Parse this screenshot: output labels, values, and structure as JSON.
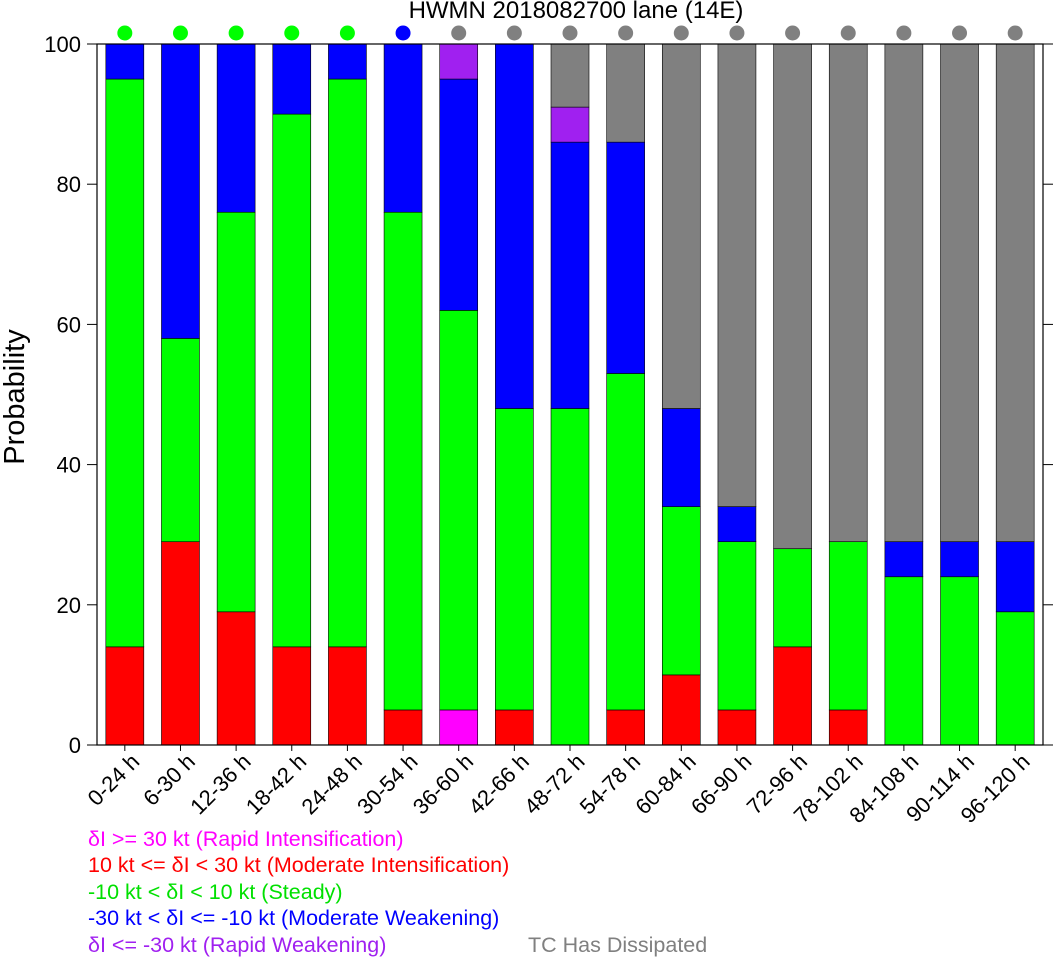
{
  "chart_data": {
    "type": "bar",
    "stacked": true,
    "title": "HWMN 2018082700 lane (14E)",
    "ylabel": "Probability",
    "xlabel": "",
    "ylim": [
      0,
      100
    ],
    "yticks": [
      0,
      20,
      40,
      60,
      80,
      100
    ],
    "categories": [
      "0-24 h",
      "6-30 h",
      "12-36 h",
      "18-42 h",
      "24-48 h",
      "30-54 h",
      "36-60 h",
      "42-66 h",
      "48-72 h",
      "54-78 h",
      "60-84 h",
      "66-90 h",
      "72-96 h",
      "78-102 h",
      "84-108 h",
      "90-114 h",
      "96-120 h"
    ],
    "series": [
      {
        "name": "δI >= 30 kt (Rapid Intensification)",
        "color": "#ff00ff",
        "values": [
          0,
          0,
          0,
          0,
          0,
          0,
          5,
          0,
          0,
          0,
          0,
          0,
          0,
          0,
          0,
          0,
          0
        ]
      },
      {
        "name": "10 kt <= δI < 30 kt (Moderate Intensification)",
        "color": "#ff0000",
        "values": [
          14,
          29,
          19,
          14,
          14,
          5,
          0,
          5,
          0,
          5,
          10,
          5,
          14,
          5,
          0,
          0,
          0
        ]
      },
      {
        "name": "-10 kt < δI < 10 kt (Steady)",
        "color": "#00ff00",
        "values": [
          81,
          29,
          57,
          76,
          81,
          71,
          57,
          43,
          48,
          48,
          24,
          24,
          14,
          24,
          24,
          24,
          19
        ]
      },
      {
        "name": "-30 kt < δI <= -10 kt (Moderate Weakening)",
        "color": "#0000ff",
        "values": [
          5,
          42,
          24,
          10,
          5,
          24,
          33,
          52,
          38,
          33,
          14,
          5,
          0,
          0,
          5,
          5,
          10
        ]
      },
      {
        "name": "δI <= -30 kt (Rapid Weakening)",
        "color": "#a020f0",
        "values": [
          0,
          0,
          0,
          0,
          0,
          0,
          5,
          0,
          5,
          0,
          0,
          0,
          0,
          0,
          0,
          0,
          0
        ]
      },
      {
        "name": "TC Has Dissipated",
        "color": "#808080",
        "values": [
          0,
          0,
          0,
          0,
          0,
          0,
          0,
          0,
          9,
          14,
          52,
          66,
          72,
          71,
          71,
          71,
          71
        ]
      }
    ],
    "top_markers": [
      "#00ff00",
      "#00ff00",
      "#00ff00",
      "#00ff00",
      "#00ff00",
      "#0000ff",
      "#808080",
      "#808080",
      "#808080",
      "#808080",
      "#808080",
      "#808080",
      "#808080",
      "#808080",
      "#808080",
      "#808080",
      "#808080"
    ]
  }
}
